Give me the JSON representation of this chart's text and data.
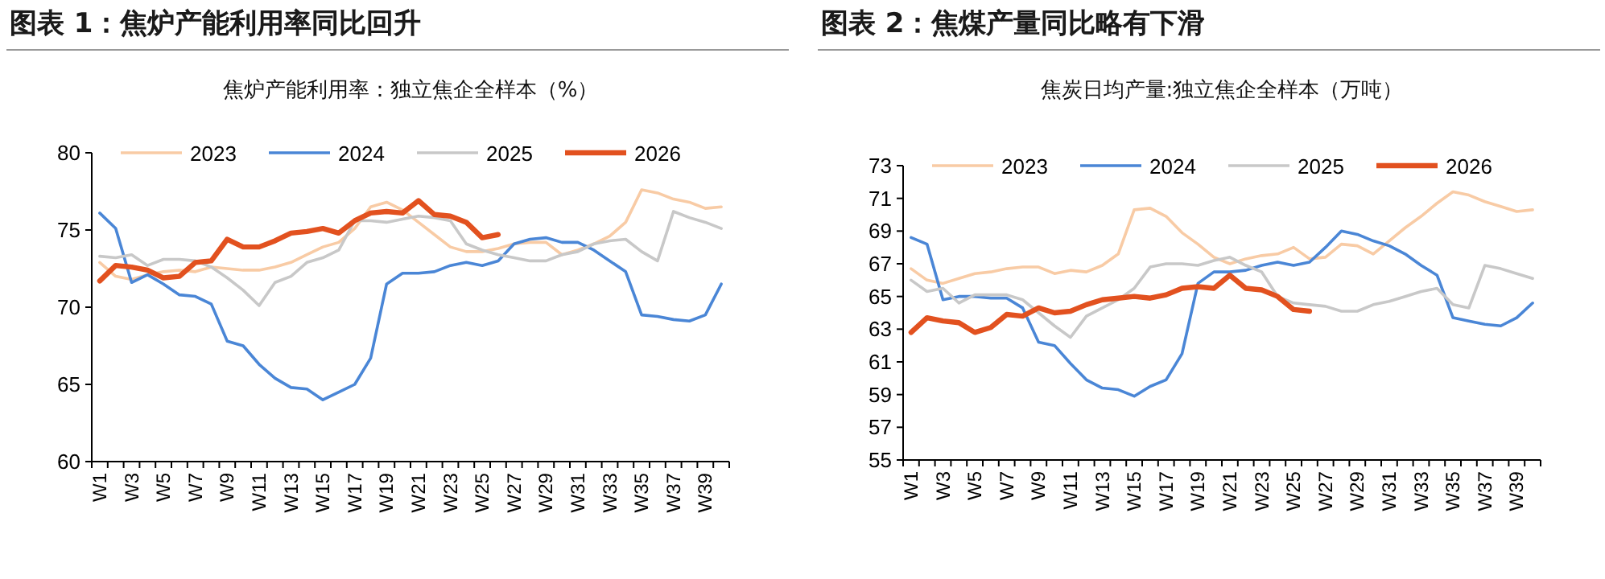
{
  "chart_data": [
    {
      "type": "line",
      "title": "图表 1：焦炉产能利用率同比回升",
      "subtitle": "焦炉产能利用率：独立焦企全样本（%）",
      "legend": "top",
      "categories": [
        "W1",
        null,
        "W3",
        null,
        "W5",
        null,
        "W7",
        null,
        "W9",
        null,
        "W11",
        null,
        "W13",
        null,
        "W15",
        null,
        "W17",
        null,
        "W19",
        null,
        "W21",
        null,
        "W23",
        null,
        "W25",
        null,
        "W27",
        null,
        "W29",
        null,
        "W31",
        null,
        "W33",
        null,
        "W35",
        null,
        "W37",
        null,
        "W39",
        null
      ],
      "ylim": [
        60,
        80
      ],
      "yticks": [
        60,
        65,
        70,
        75,
        80
      ],
      "series": [
        {
          "name": "2023",
          "color": "#f8cba5",
          "values": [
            72.9,
            72.0,
            71.8,
            72.1,
            72.3,
            72.4,
            72.3,
            72.6,
            72.5,
            72.4,
            72.4,
            72.6,
            72.9,
            73.4,
            73.9,
            74.2,
            75.1,
            76.5,
            76.8,
            76.3,
            75.5,
            74.7,
            73.9,
            73.6,
            73.6,
            73.8,
            74.1,
            74.2,
            74.2,
            73.4,
            73.7,
            74.1,
            74.6,
            75.5,
            77.6,
            77.4,
            77.0,
            76.8,
            76.4,
            76.5
          ]
        },
        {
          "name": "2024",
          "color": "#4a86d6",
          "values": [
            76.1,
            75.1,
            71.6,
            72.1,
            71.5,
            70.8,
            70.7,
            70.2,
            67.8,
            67.5,
            66.3,
            65.4,
            64.8,
            64.7,
            64.0,
            64.5,
            65.0,
            66.7,
            71.5,
            72.2,
            72.2,
            72.3,
            72.7,
            72.9,
            72.7,
            73.0,
            74.1,
            74.4,
            74.5,
            74.2,
            74.2,
            73.7,
            73.0,
            72.3,
            69.5,
            69.4,
            69.2,
            69.1,
            69.5,
            71.5
          ]
        },
        {
          "name": "2025",
          "color": "#c8c8c8",
          "values": [
            73.3,
            73.2,
            73.4,
            72.7,
            73.1,
            73.1,
            73.0,
            72.6,
            71.9,
            71.1,
            70.1,
            71.6,
            72.0,
            72.9,
            73.2,
            73.7,
            75.6,
            75.6,
            75.5,
            75.7,
            75.9,
            75.8,
            75.6,
            74.1,
            73.7,
            73.4,
            73.2,
            73.0,
            73.0,
            73.4,
            73.6,
            74.1,
            74.3,
            74.4,
            73.6,
            73.0,
            76.2,
            75.8,
            75.5,
            75.1
          ]
        },
        {
          "name": "2026",
          "color": "#e2511f",
          "values": [
            71.7,
            72.7,
            72.6,
            72.4,
            71.9,
            72.0,
            72.9,
            73.0,
            74.4,
            73.9,
            73.9,
            74.3,
            74.8,
            74.9,
            75.1,
            74.8,
            75.6,
            76.1,
            76.2,
            76.1,
            76.9,
            76.0,
            75.9,
            75.5,
            74.5,
            74.7,
            null,
            null,
            null,
            null,
            null,
            null,
            null,
            null,
            null,
            null,
            null,
            null,
            null,
            null
          ]
        }
      ]
    },
    {
      "type": "line",
      "title": "图表 2：焦煤产量同比略有下滑",
      "subtitle": "焦炭日均产量:独立焦企全样本（万吨）",
      "legend": "top",
      "categories": [
        "W1",
        null,
        "W3",
        null,
        "W5",
        null,
        "W7",
        null,
        "W9",
        null,
        "W11",
        null,
        "W13",
        null,
        "W15",
        null,
        "W17",
        null,
        "W19",
        null,
        "W21",
        null,
        "W23",
        null,
        "W25",
        null,
        "W27",
        null,
        "W29",
        null,
        "W31",
        null,
        "W33",
        null,
        "W35",
        null,
        "W37",
        null,
        "W39",
        null
      ],
      "ylim": [
        55,
        73
      ],
      "yticks": [
        55,
        57,
        59,
        61,
        63,
        65,
        67,
        69,
        71,
        73
      ],
      "series": [
        {
          "name": "2023",
          "color": "#f8cba5",
          "values": [
            66.7,
            66.0,
            65.8,
            66.1,
            66.4,
            66.5,
            66.7,
            66.8,
            66.8,
            66.4,
            66.6,
            66.5,
            66.9,
            67.6,
            70.3,
            70.4,
            69.9,
            68.9,
            68.2,
            67.4,
            67.0,
            67.3,
            67.5,
            67.6,
            68.0,
            67.3,
            67.4,
            68.2,
            68.1,
            67.6,
            68.4,
            69.2,
            69.9,
            70.7,
            71.4,
            71.2,
            70.8,
            70.5,
            70.2,
            70.3
          ]
        },
        {
          "name": "2024",
          "color": "#4a86d6",
          "values": [
            68.6,
            68.2,
            64.8,
            65.0,
            65.0,
            64.9,
            64.9,
            64.3,
            62.2,
            62.0,
            60.9,
            59.9,
            59.4,
            59.3,
            58.9,
            59.5,
            59.9,
            61.5,
            65.8,
            66.5,
            66.5,
            66.6,
            66.9,
            67.1,
            66.9,
            67.1,
            68.0,
            69.0,
            68.8,
            68.4,
            68.1,
            67.6,
            66.9,
            66.3,
            63.7,
            63.5,
            63.3,
            63.2,
            63.7,
            64.6
          ]
        },
        {
          "name": "2025",
          "color": "#c8c8c8",
          "values": [
            66.0,
            65.3,
            65.5,
            64.6,
            65.1,
            65.1,
            65.1,
            64.8,
            64.0,
            63.2,
            62.5,
            63.8,
            64.3,
            64.8,
            65.5,
            66.8,
            67.0,
            67.0,
            66.9,
            67.2,
            67.4,
            66.9,
            66.5,
            65.0,
            64.6,
            64.5,
            64.4,
            64.1,
            64.1,
            64.5,
            64.7,
            65.0,
            65.3,
            65.5,
            64.5,
            64.3,
            66.9,
            66.7,
            66.4,
            66.1
          ]
        },
        {
          "name": "2026",
          "color": "#e2511f",
          "values": [
            62.8,
            63.7,
            63.5,
            63.4,
            62.8,
            63.1,
            63.9,
            63.8,
            64.3,
            64.0,
            64.1,
            64.5,
            64.8,
            64.9,
            65.0,
            64.9,
            65.1,
            65.5,
            65.6,
            65.5,
            66.3,
            65.5,
            65.4,
            65.0,
            64.2,
            64.1,
            null,
            null,
            null,
            null,
            null,
            null,
            null,
            null,
            null,
            null,
            null,
            null,
            null,
            null
          ]
        }
      ]
    }
  ]
}
